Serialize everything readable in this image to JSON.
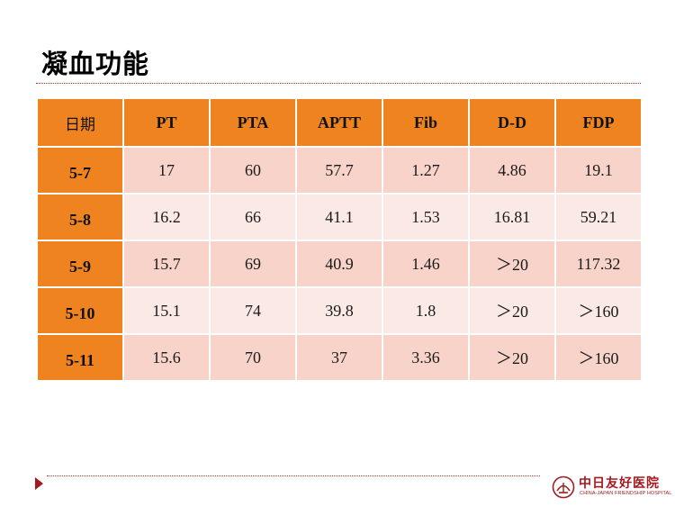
{
  "slide": {
    "title": "凝血功能"
  },
  "table": {
    "headers": [
      "日期",
      "PT",
      "PTA",
      "APTT",
      "Fib",
      "D-D",
      "FDP"
    ],
    "rows": [
      {
        "date": "5-7",
        "cells": [
          "17",
          "60",
          "57.7",
          "1.27",
          "4.86",
          "19.1"
        ]
      },
      {
        "date": "5-8",
        "cells": [
          "16.2",
          "66",
          "41.1",
          "1.53",
          "16.81",
          "59.21"
        ]
      },
      {
        "date": "5-9",
        "cells": [
          "15.7",
          "69",
          "40.9",
          "1.46",
          "＞20",
          "117.32"
        ]
      },
      {
        "date": "5-10",
        "cells": [
          "15.1",
          "74",
          "39.8",
          "1.8",
          "＞20",
          "＞160"
        ]
      },
      {
        "date": "5-11",
        "cells": [
          "15.6",
          "70",
          "37",
          "3.36",
          "＞20",
          "＞160"
        ]
      }
    ]
  },
  "footer": {
    "logo_name": "中日友好医院",
    "logo_sub": "CHINA-JAPAN FRIENDSHIP HOSPITAL"
  },
  "colors": {
    "header_orange": "#ee8320",
    "row_dark": "#f8d3ca",
    "row_light": "#fbe9e5",
    "accent_red": "#a3191e"
  }
}
